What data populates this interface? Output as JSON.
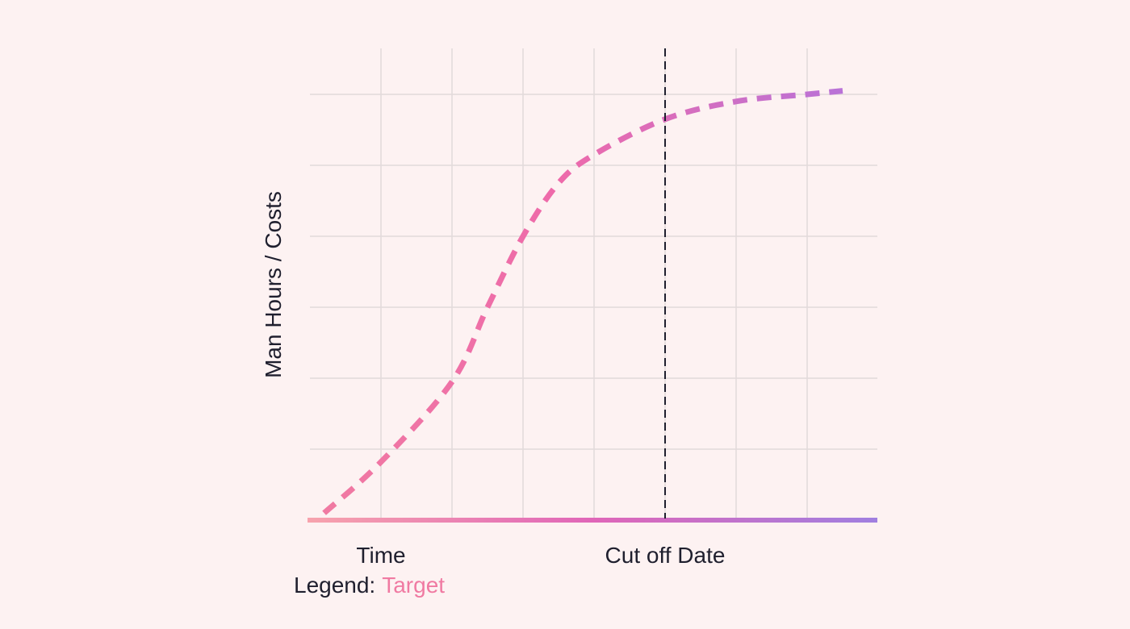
{
  "chart_data": {
    "type": "line",
    "title": "",
    "xlabel": "Time",
    "ylabel": "Man Hours / Costs",
    "xlim": [
      0,
      8
    ],
    "ylim": [
      0,
      6
    ],
    "grid": true,
    "x_ticks": [
      1,
      2,
      3,
      4,
      5,
      6,
      7
    ],
    "y_ticks": [
      1,
      2,
      3,
      4,
      5,
      6
    ],
    "annotations": [
      {
        "label": "Cut off Date",
        "x": 5,
        "style": "dashed-vertical-line"
      }
    ],
    "legend": {
      "prefix": "Legend:",
      "placement": "bottom-left"
    },
    "series": [
      {
        "name": "Target",
        "color": "#f07aa2",
        "gradient_end_color": "#b872d8",
        "line_style": "dashed",
        "x": [
          0.2,
          1.0,
          2.0,
          2.5,
          3.0,
          3.5,
          4.0,
          5.0,
          6.0,
          7.0,
          7.5
        ],
        "y": [
          0.1,
          0.82,
          1.95,
          3.0,
          4.0,
          4.75,
          5.15,
          5.65,
          5.9,
          6.0,
          6.05
        ]
      }
    ],
    "colors": {
      "axis_start": "#f7a3ad",
      "axis_end": "#a07fe0",
      "cutoff_line": "#1f1f2e",
      "text": "#1f1f2e"
    }
  }
}
